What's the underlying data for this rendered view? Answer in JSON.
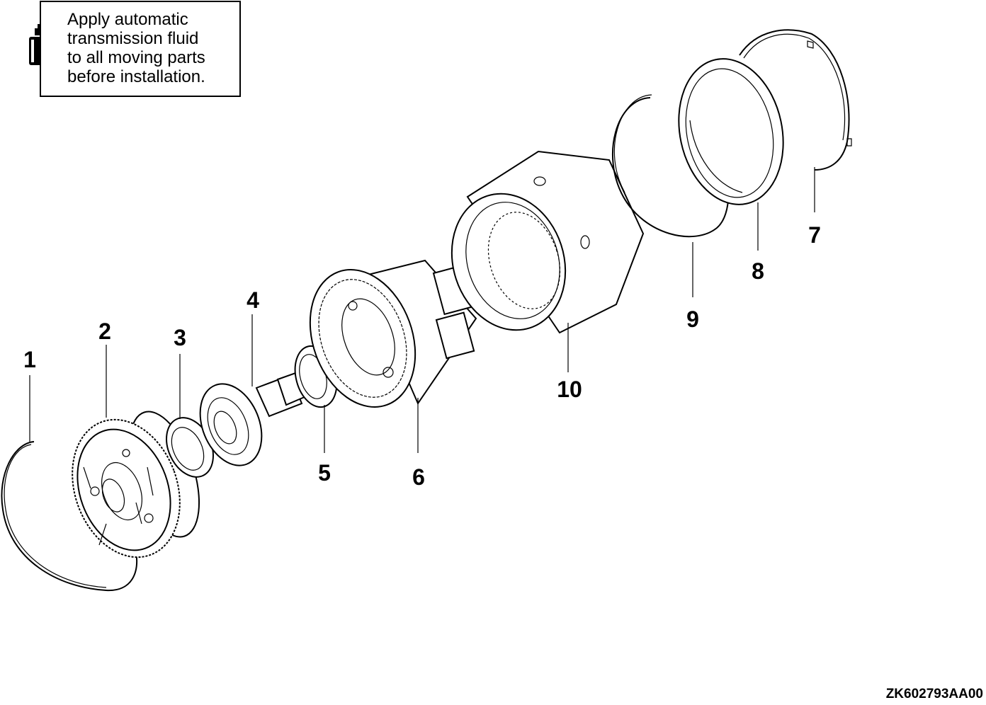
{
  "note": {
    "text": "Apply automatic\ntransmission fluid\nto all moving parts\nbefore installation.",
    "icon": "fluid-bottle-icon"
  },
  "callouts": [
    "1",
    "2",
    "3",
    "4",
    "5",
    "6",
    "7",
    "8",
    "9",
    "10"
  ],
  "reference_code": "ZK602793AA00",
  "colors": {
    "line": "#000000",
    "background": "#ffffff"
  }
}
